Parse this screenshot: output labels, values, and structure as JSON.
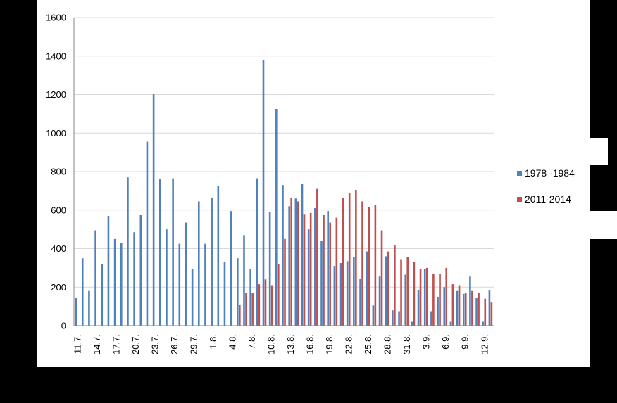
{
  "chart_data": {
    "type": "bar",
    "title": "",
    "xlabel": "",
    "ylabel": "",
    "ylim": [
      0,
      1600
    ],
    "yticks": [
      0,
      200,
      400,
      600,
      800,
      1000,
      1200,
      1400,
      1600
    ],
    "grid": true,
    "legend": "right",
    "categories": [
      "11.7.",
      "12.7.",
      "13.7.",
      "14.7.",
      "15.7.",
      "16.7.",
      "17.7.",
      "18.7.",
      "19.7.",
      "20.7.",
      "21.7.",
      "22.7.",
      "23.7.",
      "24.7.",
      "25.7.",
      "26.7.",
      "27.7.",
      "28.7.",
      "29.7.",
      "30.7.",
      "31.7.",
      "1.8.",
      "2.8.",
      "3.8.",
      "4.8.",
      "5.8.",
      "6.8.",
      "7.8.",
      "8.8.",
      "9.8.",
      "10.8.",
      "11.8.",
      "12.8.",
      "13.8.",
      "14.8.",
      "15.8.",
      "16.8.",
      "17.8.",
      "18.8.",
      "19.8.",
      "20.8.",
      "21.8.",
      "22.8.",
      "23.8.",
      "24.8.",
      "25.8.",
      "26.8.",
      "27.8.",
      "28.8.",
      "29.8.",
      "30.8.",
      "31.8.",
      "1.9.",
      "2.9.",
      "3.9.",
      "4.9.",
      "5.9.",
      "6.9.",
      "7.9.",
      "8.9.",
      "9.9.",
      "10.9.",
      "11.9.",
      "12.9.",
      "13.9."
    ],
    "xtick_labels": [
      "11.7.",
      "14.7.",
      "17.7.",
      "20.7.",
      "23.7.",
      "26.7.",
      "29.7.",
      "1.8.",
      "4.8.",
      "7.8.",
      "10.8.",
      "13.8.",
      "16.8.",
      "19.8.",
      "22.8.",
      "25.8.",
      "28.8.",
      "31.8.",
      "3.9.",
      "6.9.",
      "9.9.",
      "12.9."
    ],
    "series": [
      {
        "name": "1978 -1984",
        "color": "#4F81BD",
        "values": [
          145,
          350,
          180,
          495,
          320,
          570,
          450,
          430,
          770,
          485,
          575,
          955,
          1205,
          760,
          500,
          765,
          425,
          535,
          295,
          645,
          425,
          665,
          725,
          330,
          595,
          350,
          470,
          295,
          765,
          1380,
          590,
          1125,
          730,
          620,
          660,
          735,
          500,
          610,
          440,
          595,
          310,
          325,
          335,
          355,
          245,
          385,
          105,
          255,
          360,
          80,
          75,
          265,
          20,
          185,
          295,
          75,
          150,
          200,
          20,
          180,
          165,
          255,
          145,
          20,
          185
        ]
      },
      {
        "name": "2011-2014",
        "color": "#C0504D",
        "values": [
          null,
          null,
          null,
          null,
          null,
          null,
          null,
          null,
          null,
          null,
          null,
          null,
          null,
          null,
          null,
          null,
          null,
          null,
          null,
          null,
          null,
          null,
          null,
          null,
          null,
          110,
          170,
          170,
          215,
          240,
          210,
          320,
          450,
          665,
          645,
          580,
          585,
          710,
          575,
          535,
          560,
          665,
          690,
          705,
          645,
          615,
          625,
          495,
          385,
          420,
          345,
          355,
          330,
          295,
          300,
          270,
          270,
          300,
          215,
          210,
          170,
          180,
          170,
          140,
          120
        ]
      }
    ]
  }
}
